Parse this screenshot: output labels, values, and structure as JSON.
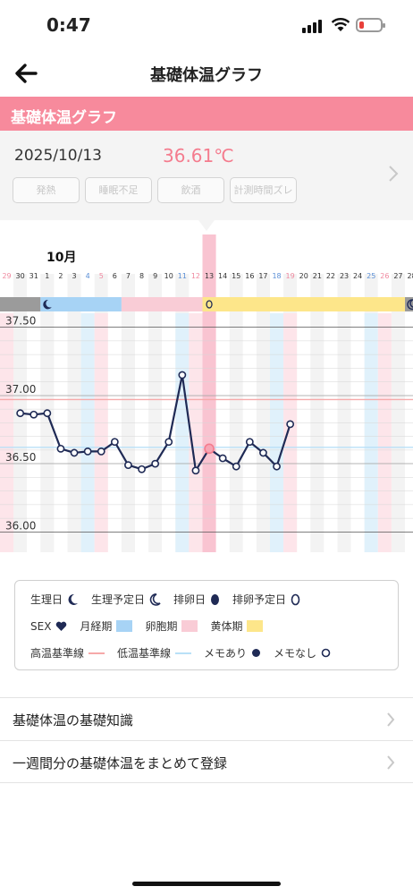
{
  "status_bar": {
    "time": "0:47",
    "battery_color": "#e8403a"
  },
  "nav": {
    "title": "基礎体温グラフ",
    "back_icon": "arrow-left-icon"
  },
  "section_header": {
    "title": "基礎体温グラフ",
    "color": "#f78a9c"
  },
  "detail": {
    "date": "2025/10/13",
    "temperature": "36.61℃",
    "tags": [
      "発熱",
      "睡眠不足",
      "飲酒",
      "計測時間ズレ"
    ]
  },
  "colors": {
    "menstrual": "#a7d3f5",
    "follicular": "#f9ccd6",
    "luteal": "#fde68a",
    "line": "#1f2a55",
    "accent": "#f47c8e",
    "high_line": "#f6a9a9",
    "low_line": "#b9e0f7"
  },
  "chart_data": {
    "type": "line",
    "title": "",
    "month_label": "10月",
    "x": [
      "29",
      "30",
      "31",
      "1",
      "2",
      "3",
      "4",
      "5",
      "6",
      "7",
      "8",
      "9",
      "10",
      "11",
      "12",
      "13",
      "14",
      "15",
      "16",
      "17",
      "18",
      "19",
      "20",
      "21",
      "22",
      "23",
      "24",
      "25",
      "26",
      "27",
      "28"
    ],
    "x_label_colors": [
      "red",
      "normal",
      "normal",
      "normal",
      "normal",
      "normal",
      "blue",
      "red",
      "normal",
      "normal",
      "normal",
      "normal",
      "normal",
      "blue",
      "red",
      "normal",
      "normal",
      "normal",
      "normal",
      "normal",
      "blue",
      "red",
      "normal",
      "normal",
      "normal",
      "normal",
      "normal",
      "blue",
      "red",
      "normal",
      "normal"
    ],
    "y_ticks": [
      "37.50",
      "37.00",
      "36.50",
      "36.00"
    ],
    "ylim": [
      35.95,
      37.55
    ],
    "series": [
      {
        "values": [
          36.87,
          36.86,
          36.87,
          36.61,
          36.58,
          36.59,
          36.59,
          36.66,
          36.49,
          36.46,
          36.5,
          36.66,
          37.15,
          36.45,
          36.61,
          36.54,
          36.48,
          36.66,
          36.58,
          36.48,
          36.79,
          null,
          null,
          null,
          null,
          null,
          null,
          null,
          null,
          null,
          null
        ],
        "start_index": 1
      }
    ],
    "selected": {
      "x": "13",
      "value": 36.61
    },
    "phases": [
      {
        "name": "生理日",
        "from": "29",
        "to": "31",
        "color": "#9b9b9b"
      },
      {
        "name": "月経期",
        "from": "1",
        "to": "6",
        "color": "#a7d3f5"
      },
      {
        "name": "卵胞期",
        "from": "7",
        "to": "12",
        "color": "#f9ccd6"
      },
      {
        "name": "黄体期",
        "from": "13",
        "to": "27",
        "color": "#fde68a"
      },
      {
        "name": "生理予定日",
        "from": "28",
        "to": "28",
        "color": "#9b9b9b"
      }
    ],
    "high_baseline": 36.97,
    "low_baseline": 36.62,
    "grid": true
  },
  "legend": {
    "row1": [
      "生理日",
      "生理予定日",
      "排卵日",
      "排卵予定日"
    ],
    "row2": [
      "SEX",
      "月経期",
      "卵胞期",
      "黄体期"
    ],
    "row3": [
      "高温基準線",
      "低温基準線",
      "メモあり",
      "メモなし"
    ]
  },
  "menu": [
    {
      "label": "基礎体温の基礎知識"
    },
    {
      "label": "一週間分の基礎体温をまとめて登録"
    }
  ]
}
